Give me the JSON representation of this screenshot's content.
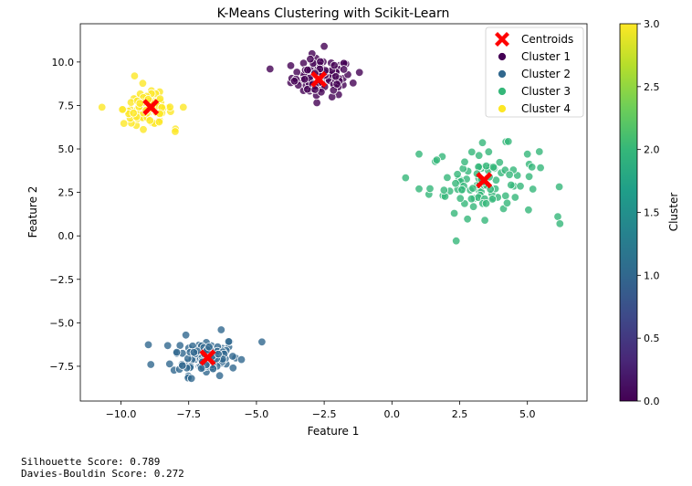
{
  "chart_data": {
    "type": "scatter",
    "title": "K-Means Clustering with Scikit-Learn",
    "xlabel": "Feature 1",
    "ylabel": "Feature 2",
    "xlim": [
      -11.5,
      7.2
    ],
    "ylim": [
      -9.5,
      12.2
    ],
    "xticks": [
      -10.0,
      -7.5,
      -5.0,
      -2.5,
      0.0,
      2.5,
      5.0
    ],
    "xtick_labels": [
      "−10.0",
      "−7.5",
      "−5.0",
      "−2.5",
      "0.0",
      "2.5",
      "5.0"
    ],
    "yticks": [
      -7.5,
      -5.0,
      -2.5,
      0.0,
      2.5,
      5.0,
      7.5,
      10.0
    ],
    "ytick_labels": [
      "−7.5",
      "−5.0",
      "−2.5",
      "0.0",
      "2.5",
      "5.0",
      "7.5",
      "10.0"
    ],
    "grid": false,
    "legend_position": "top-right",
    "legend": [
      {
        "label": "Centroids",
        "marker": "X",
        "color": "#ff0000"
      },
      {
        "label": "Cluster 1",
        "marker": "o",
        "color": "#440154"
      },
      {
        "label": "Cluster 2",
        "marker": "o",
        "color": "#31688e"
      },
      {
        "label": "Cluster 3",
        "marker": "o",
        "color": "#35b779"
      },
      {
        "label": "Cluster 4",
        "marker": "o",
        "color": "#fde725"
      }
    ],
    "colorbar": {
      "label": "Cluster",
      "range": [
        0.0,
        3.0
      ],
      "ticks": [
        0.0,
        0.5,
        1.0,
        1.5,
        2.0,
        2.5,
        3.0
      ],
      "tick_labels": [
        "0.0",
        "0.5",
        "1.0",
        "1.5",
        "2.0",
        "2.5",
        "3.0"
      ],
      "colormap": "viridis",
      "stops": [
        "#440154",
        "#482878",
        "#3e4989",
        "#31688e",
        "#26828e",
        "#1f9e89",
        "#35b779",
        "#6ece58",
        "#b5de2b",
        "#fde725"
      ]
    },
    "centroids": [
      {
        "x": -2.7,
        "y": 9.0
      },
      {
        "x": -6.8,
        "y": -7.0
      },
      {
        "x": 3.4,
        "y": 3.2
      },
      {
        "x": -8.9,
        "y": 7.4
      }
    ],
    "clusters": [
      {
        "name": "Cluster 1",
        "color": "#440154",
        "center": [
          -2.6,
          9.1
        ],
        "spread": [
          0.55,
          0.55
        ],
        "points": [
          [
            -4.5,
            9.6
          ],
          [
            -1.2,
            9.4
          ],
          [
            -2.5,
            10.9
          ],
          [
            -3.6,
            8.9
          ]
        ]
      },
      {
        "name": "Cluster 2",
        "color": "#31688e",
        "center": [
          -6.9,
          -6.9
        ],
        "spread": [
          0.6,
          0.55
        ],
        "points": [
          [
            -4.8,
            -6.1
          ],
          [
            -8.9,
            -7.4
          ],
          [
            -6.3,
            -5.4
          ],
          [
            -7.4,
            -8.2
          ]
        ]
      },
      {
        "name": "Cluster 3",
        "color": "#35b779",
        "center": [
          3.4,
          3.1
        ],
        "spread": [
          1.0,
          1.0
        ],
        "points": [
          [
            6.2,
            0.7
          ],
          [
            1.0,
            4.7
          ],
          [
            2.3,
            1.3
          ],
          [
            5.0,
            4.7
          ],
          [
            1.0,
            2.7
          ]
        ]
      },
      {
        "name": "Cluster 4",
        "color": "#fde725",
        "center": [
          -9.0,
          7.3
        ],
        "spread": [
          0.45,
          0.45
        ],
        "points": [
          [
            -10.7,
            7.4
          ],
          [
            -7.7,
            7.4
          ],
          [
            -9.5,
            9.2
          ],
          [
            -8.0,
            6.0
          ]
        ]
      }
    ]
  },
  "metrics": {
    "silhouette": "Silhouette Score: 0.789",
    "davies_bouldin": "Davies-Bouldin Score: 0.272"
  }
}
